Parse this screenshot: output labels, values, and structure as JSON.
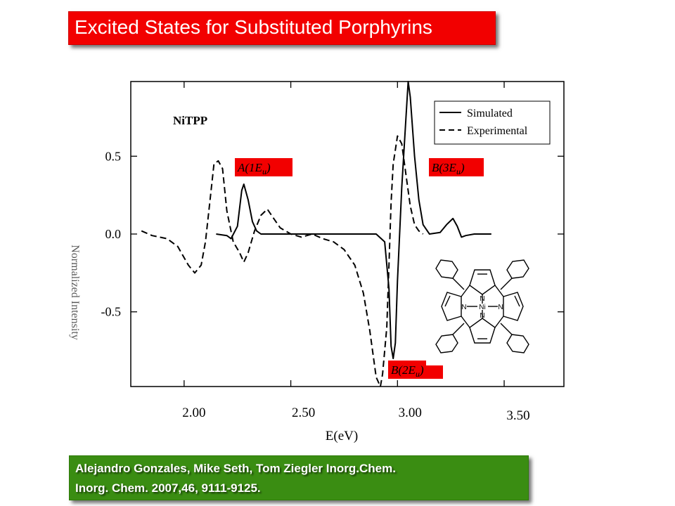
{
  "slide": {
    "title": "Excited States for Substituted Porphyrins",
    "citation_line1": "Alejandro Gonzales, Mike Seth, Tom Ziegler Inorg.Chem.",
    "citation_line2": "Inorg. Chem. 2007,46, 9111-9125."
  },
  "colors": {
    "title_bg": "#f20000",
    "citation_bg": "#3a8d12",
    "label_bg": "#f20000",
    "curve": "#000000"
  },
  "chart_data": {
    "type": "line",
    "title": "",
    "sample_label": "NiTPP",
    "xlabel": "E(eV)",
    "ylabel": "Normalized Intensity",
    "xlim": [
      1.75,
      3.78
    ],
    "ylim": [
      -0.98,
      0.98
    ],
    "xticks": [
      2.0,
      2.5,
      3.0,
      3.5
    ],
    "xtick_labels": [
      "2.00",
      "2.50",
      "3.00",
      "3.50"
    ],
    "yticks": [
      0.5,
      0.0,
      -0.5
    ],
    "ytick_labels": [
      "0.5",
      "0.0",
      "-0.5"
    ],
    "legend_position": "top-right",
    "series": [
      {
        "name": "Simulated",
        "style": "solid",
        "x": [
          2.15,
          2.2,
          2.22,
          2.25,
          2.27,
          2.28,
          2.3,
          2.32,
          2.34,
          2.36,
          2.4,
          2.6,
          2.8,
          2.9,
          2.94,
          2.96,
          2.97,
          2.98,
          2.99,
          3.0,
          3.02,
          3.04,
          3.05,
          3.06,
          3.08,
          3.1,
          3.12,
          3.15,
          3.2,
          3.23,
          3.26,
          3.28,
          3.3,
          3.32,
          3.36,
          3.44
        ],
        "y": [
          0.0,
          -0.01,
          -0.03,
          0.05,
          0.28,
          0.32,
          0.22,
          0.08,
          0.02,
          0.0,
          0.0,
          0.0,
          0.0,
          0.0,
          -0.05,
          -0.35,
          -0.72,
          -0.8,
          -0.7,
          -0.3,
          0.3,
          0.75,
          0.98,
          0.88,
          0.5,
          0.22,
          0.06,
          0.0,
          0.01,
          0.06,
          0.1,
          0.05,
          -0.02,
          -0.01,
          0.0,
          0.0
        ]
      },
      {
        "name": "Experimental",
        "style": "dashed",
        "x": [
          1.8,
          1.85,
          1.92,
          1.97,
          2.02,
          2.05,
          2.08,
          2.1,
          2.12,
          2.14,
          2.16,
          2.18,
          2.2,
          2.23,
          2.26,
          2.28,
          2.3,
          2.33,
          2.36,
          2.39,
          2.42,
          2.45,
          2.5,
          2.55,
          2.6,
          2.65,
          2.7,
          2.75,
          2.8,
          2.84,
          2.87,
          2.9,
          2.92,
          2.93,
          2.95,
          2.96,
          2.97,
          2.98,
          3.0,
          3.02,
          3.04,
          3.06,
          3.08,
          3.1,
          3.12
        ],
        "y": [
          0.02,
          -0.01,
          -0.03,
          -0.08,
          -0.2,
          -0.25,
          -0.2,
          -0.05,
          0.2,
          0.45,
          0.47,
          0.42,
          0.15,
          -0.05,
          -0.12,
          -0.18,
          -0.12,
          0.02,
          0.12,
          0.16,
          0.1,
          0.04,
          0.0,
          -0.02,
          0.0,
          -0.03,
          -0.05,
          -0.1,
          -0.2,
          -0.38,
          -0.62,
          -0.92,
          -0.98,
          -0.9,
          -0.6,
          -0.2,
          0.2,
          0.45,
          0.63,
          0.58,
          0.38,
          0.18,
          0.06,
          0.02,
          0.0
        ]
      }
    ],
    "annotations": [
      {
        "text": "A(1Eu)",
        "main": "A(1E",
        "sub": "u",
        "close": ")"
      },
      {
        "text": "B(3Eu)",
        "main": "B(3E",
        "sub": "u",
        "close": ")"
      },
      {
        "text": "B(2Eu)",
        "main": "B(2E",
        "sub": "u",
        "close": ")"
      }
    ],
    "inset": {
      "type": "molecule",
      "center_atom": "Ni",
      "ring_atom": "N"
    }
  }
}
